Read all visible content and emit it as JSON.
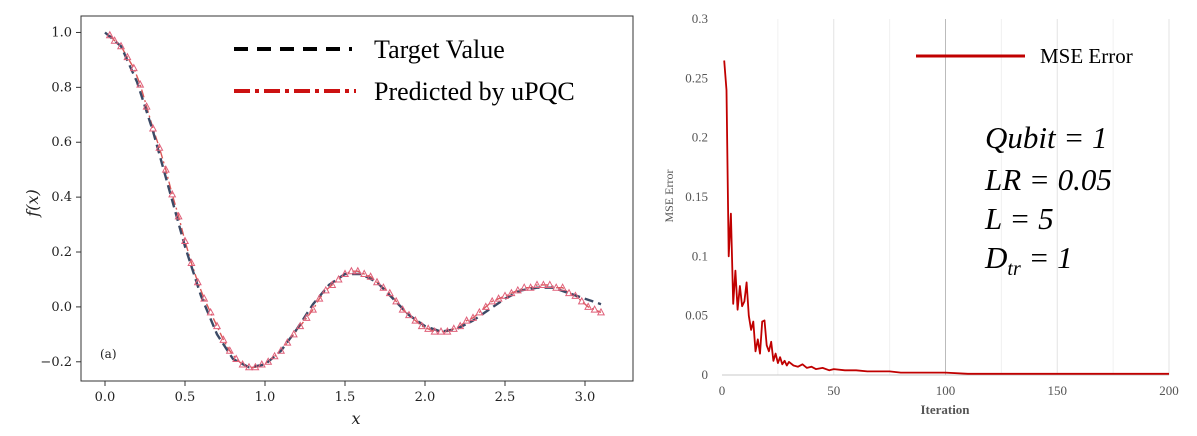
{
  "chart_data": [
    {
      "type": "line",
      "panel_label": "(a)",
      "xlabel": "x",
      "ylabel": "f(x)",
      "xlim": [
        -0.15,
        3.3
      ],
      "ylim": [
        -0.27,
        1.06
      ],
      "xticks": [
        0.0,
        0.5,
        1.0,
        1.5,
        2.0,
        2.5,
        3.0
      ],
      "xtick_labels": [
        "0.0",
        "0.5",
        "1.0",
        "1.5",
        "2.0",
        "2.5",
        "3.0"
      ],
      "yticks": [
        -0.2,
        0.0,
        0.2,
        0.4,
        0.6,
        0.8,
        1.0
      ],
      "ytick_labels": [
        "−0.2",
        "0.0",
        "0.2",
        "0.4",
        "0.6",
        "0.8",
        "1.0"
      ],
      "grid": false,
      "legend_position": "top-right",
      "series": [
        {
          "name": "Target Value",
          "style": "dashed",
          "color": "#3b4a66",
          "x": [
            0.0,
            0.1,
            0.2,
            0.3,
            0.4,
            0.5,
            0.6,
            0.7,
            0.8,
            0.9,
            1.0,
            1.1,
            1.2,
            1.3,
            1.4,
            1.5,
            1.6,
            1.7,
            1.8,
            1.9,
            2.0,
            2.1,
            2.2,
            2.3,
            2.4,
            2.5,
            2.6,
            2.7,
            2.8,
            2.9,
            3.0,
            3.1
          ],
          "y": [
            1.0,
            0.95,
            0.82,
            0.64,
            0.43,
            0.22,
            0.04,
            -0.1,
            -0.19,
            -0.22,
            -0.21,
            -0.16,
            -0.08,
            0.01,
            0.08,
            0.12,
            0.12,
            0.09,
            0.03,
            -0.03,
            -0.07,
            -0.09,
            -0.08,
            -0.05,
            -0.01,
            0.03,
            0.06,
            0.07,
            0.07,
            0.05,
            0.03,
            0.01
          ]
        },
        {
          "name": "Predicted by uPQC",
          "style": "dash-dot",
          "color": "#cc1111",
          "marker": "triangle",
          "marker_color": "#e0607a",
          "x": [
            0.03,
            0.06,
            0.1,
            0.14,
            0.18,
            0.22,
            0.26,
            0.3,
            0.34,
            0.38,
            0.42,
            0.46,
            0.5,
            0.54,
            0.58,
            0.62,
            0.66,
            0.7,
            0.74,
            0.78,
            0.82,
            0.86,
            0.9,
            0.94,
            0.98,
            1.02,
            1.06,
            1.1,
            1.14,
            1.18,
            1.22,
            1.26,
            1.3,
            1.34,
            1.38,
            1.42,
            1.46,
            1.5,
            1.54,
            1.58,
            1.62,
            1.66,
            1.7,
            1.74,
            1.78,
            1.82,
            1.86,
            1.9,
            1.94,
            1.98,
            2.02,
            2.06,
            2.1,
            2.14,
            2.18,
            2.22,
            2.26,
            2.3,
            2.34,
            2.38,
            2.42,
            2.46,
            2.5,
            2.54,
            2.58,
            2.62,
            2.66,
            2.7,
            2.74,
            2.78,
            2.82,
            2.86,
            2.9,
            2.94,
            2.98,
            3.02,
            3.06,
            3.1
          ],
          "y": [
            0.99,
            0.97,
            0.95,
            0.91,
            0.87,
            0.81,
            0.73,
            0.65,
            0.58,
            0.5,
            0.41,
            0.33,
            0.24,
            0.16,
            0.09,
            0.03,
            -0.02,
            -0.07,
            -0.12,
            -0.16,
            -0.19,
            -0.21,
            -0.22,
            -0.22,
            -0.21,
            -0.2,
            -0.18,
            -0.16,
            -0.13,
            -0.1,
            -0.07,
            -0.04,
            -0.01,
            0.03,
            0.06,
            0.08,
            0.1,
            0.12,
            0.13,
            0.13,
            0.12,
            0.11,
            0.09,
            0.07,
            0.05,
            0.02,
            -0.01,
            -0.03,
            -0.05,
            -0.07,
            -0.08,
            -0.09,
            -0.09,
            -0.09,
            -0.08,
            -0.07,
            -0.05,
            -0.04,
            -0.02,
            0.0,
            0.02,
            0.03,
            0.04,
            0.05,
            0.06,
            0.07,
            0.07,
            0.08,
            0.08,
            0.08,
            0.07,
            0.07,
            0.05,
            0.04,
            0.02,
            0.0,
            -0.01,
            -0.02
          ]
        }
      ]
    },
    {
      "type": "line",
      "xlabel": "Iteration",
      "ylabel": "MSE Error",
      "xlim": [
        0,
        200
      ],
      "ylim": [
        0,
        0.3
      ],
      "xticks": [
        0,
        50,
        100,
        150,
        200
      ],
      "xtick_labels": [
        "0",
        "50",
        "100",
        "150",
        "200"
      ],
      "yticks": [
        0,
        0.05,
        0.1,
        0.15,
        0.2,
        0.25,
        0.3
      ],
      "ytick_labels": [
        "0",
        "0.05",
        "0.1",
        "0.15",
        "0.2",
        "0.25",
        "0.3"
      ],
      "grid": true,
      "legend_position": "top-right",
      "annotations": [
        {
          "base": "Qubit = 1"
        },
        {
          "base": "LR = 0.05"
        },
        {
          "base": "L = 5"
        },
        {
          "base": "D",
          "sub": "tr",
          "tail": " = 1"
        }
      ],
      "series": [
        {
          "name": "MSE Error",
          "color": "#c00000",
          "x": [
            1,
            2,
            3,
            4,
            5,
            6,
            7,
            8,
            9,
            10,
            11,
            12,
            13,
            14,
            15,
            16,
            17,
            18,
            19,
            20,
            21,
            22,
            23,
            24,
            25,
            26,
            27,
            28,
            29,
            30,
            32,
            34,
            36,
            38,
            40,
            42,
            45,
            48,
            50,
            55,
            60,
            65,
            70,
            75,
            80,
            90,
            100,
            110,
            120,
            130,
            140,
            150,
            160,
            170,
            180,
            190,
            200
          ],
          "y": [
            0.265,
            0.24,
            0.1,
            0.136,
            0.06,
            0.088,
            0.055,
            0.075,
            0.058,
            0.062,
            0.078,
            0.05,
            0.038,
            0.045,
            0.02,
            0.03,
            0.018,
            0.045,
            0.046,
            0.025,
            0.02,
            0.028,
            0.012,
            0.018,
            0.01,
            0.015,
            0.009,
            0.012,
            0.008,
            0.011,
            0.008,
            0.007,
            0.009,
            0.006,
            0.007,
            0.005,
            0.006,
            0.004,
            0.005,
            0.004,
            0.004,
            0.003,
            0.003,
            0.003,
            0.002,
            0.002,
            0.002,
            0.001,
            0.001,
            0.001,
            0.001,
            0.001,
            0.001,
            0.001,
            0.001,
            0.001,
            0.001
          ]
        }
      ]
    }
  ]
}
